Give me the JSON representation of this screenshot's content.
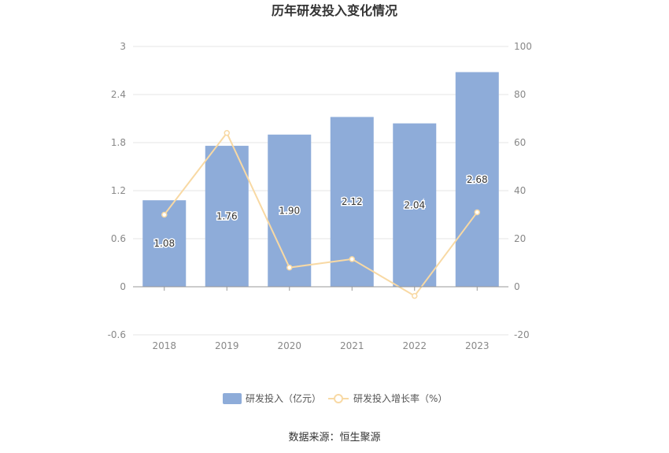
{
  "chart_data": {
    "type": "bar",
    "title": "历年研发投入变化情况",
    "categories": [
      "2018",
      "2019",
      "2020",
      "2021",
      "2022",
      "2023"
    ],
    "series": [
      {
        "name": "研发投入（亿元）",
        "type": "bar",
        "axis": "left",
        "values": [
          1.08,
          1.76,
          1.9,
          2.12,
          2.04,
          2.68
        ],
        "color": "#8eacd9"
      },
      {
        "name": "研发投入增长率（%）",
        "type": "line",
        "axis": "right",
        "values": [
          30.0,
          64.0,
          8.0,
          11.5,
          -3.8,
          31.0
        ],
        "color": "#f8d9a4"
      }
    ],
    "y_left": {
      "min": -0.6,
      "max": 3,
      "ticks": [
        "-0.6",
        "0",
        "0.6",
        "1.2",
        "1.8",
        "2.4",
        "3"
      ]
    },
    "y_right": {
      "min": -20,
      "max": 100,
      "ticks": [
        "-20",
        "0",
        "20",
        "40",
        "60",
        "80",
        "100"
      ]
    },
    "bar_labels": [
      "1.08",
      "1.76",
      "1.90",
      "2.12",
      "2.04",
      "2.68"
    ],
    "grid": true,
    "legend_position": "bottom"
  },
  "source": "数据来源：恒生聚源"
}
